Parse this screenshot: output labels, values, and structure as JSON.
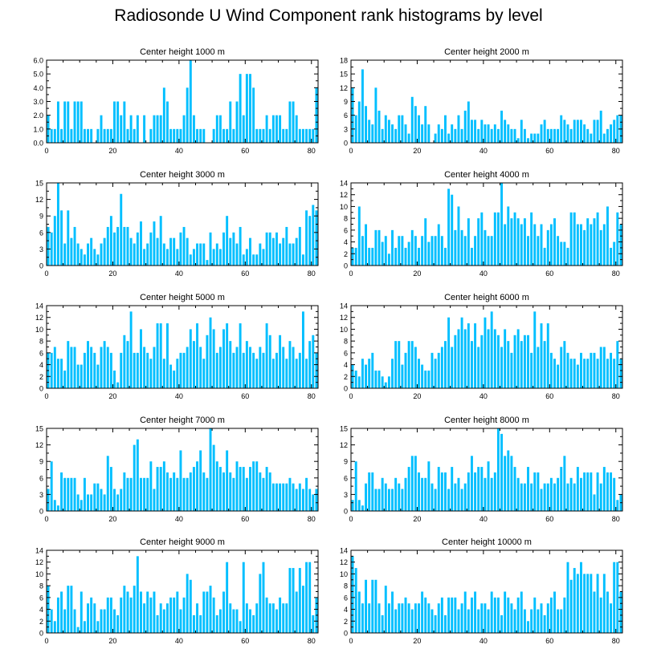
{
  "title": "Radiosonde U Wind Component rank histograms by level",
  "bar_color": "#00bfff",
  "chart_data": [
    {
      "type": "bar",
      "title": "Center height 1000 m",
      "xlim": [
        0,
        82
      ],
      "ylim": [
        0,
        6
      ],
      "yticks": [
        0,
        1,
        2,
        3,
        4,
        5,
        6
      ],
      "ytick_labels": [
        "0.0",
        "1.0",
        "2.0",
        "3.0",
        "4.0",
        "5.0",
        "6.0"
      ],
      "xticks": [
        0,
        20,
        40,
        60,
        80
      ],
      "values": [
        2,
        1,
        1,
        3,
        1,
        3,
        3,
        1,
        3,
        3,
        3,
        1,
        1,
        1,
        0,
        1,
        2,
        1,
        1,
        1,
        3,
        3,
        2,
        3,
        1,
        2,
        1,
        2,
        0,
        2,
        0,
        1,
        2,
        2,
        2,
        4,
        3,
        1,
        1,
        1,
        1,
        2,
        4,
        6,
        2,
        1,
        1,
        1,
        0,
        0,
        1,
        2,
        2,
        1,
        1,
        3,
        1,
        3,
        5,
        2,
        5,
        5,
        4,
        1,
        1,
        1,
        2,
        1,
        2,
        2,
        2,
        1,
        1,
        3,
        3,
        2,
        1,
        1,
        1,
        1,
        1,
        4
      ]
    },
    {
      "type": "bar",
      "title": "Center height 2000 m",
      "xlim": [
        0,
        82
      ],
      "ylim": [
        0,
        18
      ],
      "yticks": [
        0,
        3,
        6,
        9,
        12,
        15,
        18
      ],
      "ytick_labels": [
        "0",
        "3",
        "6",
        "9",
        "12",
        "15",
        "18"
      ],
      "xticks": [
        0,
        20,
        40,
        60,
        80
      ],
      "values": [
        12,
        6,
        9,
        16,
        8,
        5,
        4,
        12,
        7,
        3,
        6,
        5,
        4,
        3,
        6,
        6,
        4,
        2,
        10,
        8,
        6,
        4,
        8,
        4,
        0,
        2,
        4,
        3,
        6,
        2,
        4,
        3,
        6,
        3,
        7,
        9,
        5,
        5,
        3,
        5,
        4,
        4,
        3,
        4,
        3,
        7,
        5,
        4,
        3,
        3,
        1,
        5,
        3,
        1,
        2,
        2,
        2,
        4,
        5,
        3,
        3,
        3,
        3,
        6,
        5,
        4,
        3,
        5,
        5,
        5,
        4,
        3,
        2,
        5,
        5,
        7,
        2,
        3,
        4,
        5,
        6,
        6
      ]
    },
    {
      "type": "bar",
      "title": "Center height 3000 m",
      "xlim": [
        0,
        82
      ],
      "ylim": [
        0,
        15
      ],
      "yticks": [
        0,
        3,
        6,
        9,
        12,
        15
      ],
      "ytick_labels": [
        "0",
        "3",
        "6",
        "9",
        "12",
        "15"
      ],
      "xticks": [
        0,
        20,
        40,
        60,
        80
      ],
      "values": [
        7,
        6,
        9,
        15,
        10,
        4,
        10,
        5,
        7,
        4,
        3,
        2,
        4,
        5,
        3,
        2,
        4,
        5,
        7,
        9,
        6,
        7,
        13,
        7,
        7,
        5,
        4,
        6,
        8,
        3,
        4,
        6,
        8,
        5,
        9,
        4,
        3,
        5,
        5,
        3,
        6,
        7,
        5,
        2,
        3,
        4,
        4,
        4,
        1,
        6,
        3,
        4,
        3,
        6,
        9,
        5,
        6,
        4,
        7,
        2,
        3,
        5,
        2,
        2,
        4,
        3,
        6,
        6,
        5,
        6,
        4,
        5,
        7,
        4,
        4,
        5,
        7,
        2,
        10,
        9,
        11,
        10
      ]
    },
    {
      "type": "bar",
      "title": "Center height 4000 m",
      "xlim": [
        0,
        82
      ],
      "ylim": [
        0,
        14
      ],
      "yticks": [
        0,
        2,
        4,
        6,
        8,
        10,
        12,
        14
      ],
      "ytick_labels": [
        "0",
        "2",
        "4",
        "6",
        "8",
        "10",
        "12",
        "14"
      ],
      "xticks": [
        0,
        20,
        40,
        60,
        80
      ],
      "values": [
        3,
        3,
        10,
        5,
        7,
        3,
        3,
        6,
        6,
        4,
        5,
        2,
        6,
        3,
        5,
        5,
        3,
        4,
        6,
        5,
        3,
        5,
        8,
        4,
        5,
        5,
        7,
        5,
        3,
        13,
        12,
        6,
        10,
        6,
        5,
        8,
        3,
        5,
        8,
        9,
        6,
        5,
        5,
        9,
        9,
        14,
        7,
        10,
        8,
        9,
        8,
        7,
        8,
        5,
        9,
        7,
        5,
        7,
        3,
        6,
        7,
        8,
        5,
        4,
        4,
        3,
        9,
        9,
        7,
        7,
        6,
        8,
        7,
        8,
        9,
        6,
        7,
        10,
        3,
        4,
        9,
        7
      ]
    },
    {
      "type": "bar",
      "title": "Center height 5000 m",
      "xlim": [
        0,
        82
      ],
      "ylim": [
        0,
        14
      ],
      "yticks": [
        0,
        2,
        4,
        6,
        8,
        10,
        12,
        14
      ],
      "ytick_labels": [
        "0",
        "2",
        "4",
        "6",
        "8",
        "10",
        "12",
        "14"
      ],
      "xticks": [
        0,
        20,
        40,
        60,
        80
      ],
      "values": [
        6,
        6,
        7,
        5,
        5,
        3,
        8,
        7,
        7,
        4,
        4,
        6,
        8,
        7,
        6,
        4,
        7,
        8,
        7,
        6,
        3,
        1,
        6,
        9,
        8,
        13,
        6,
        6,
        10,
        7,
        6,
        5,
        7,
        11,
        11,
        5,
        11,
        4,
        3,
        5,
        6,
        6,
        7,
        10,
        8,
        11,
        7,
        5,
        9,
        12,
        10,
        6,
        7,
        10,
        11,
        8,
        6,
        7,
        11,
        6,
        8,
        7,
        6,
        5,
        7,
        6,
        11,
        9,
        5,
        6,
        9,
        7,
        5,
        8,
        7,
        5,
        6,
        13,
        5,
        8,
        9,
        6
      ]
    },
    {
      "type": "bar",
      "title": "Center height 6000 m",
      "xlim": [
        0,
        82
      ],
      "ylim": [
        0,
        14
      ],
      "yticks": [
        0,
        2,
        4,
        6,
        8,
        10,
        12,
        14
      ],
      "ytick_labels": [
        "0",
        "2",
        "4",
        "6",
        "8",
        "10",
        "12",
        "14"
      ],
      "xticks": [
        0,
        20,
        40,
        60,
        80
      ],
      "values": [
        4,
        3,
        2,
        5,
        4,
        5,
        6,
        3,
        3,
        2,
        1,
        2,
        5,
        8,
        8,
        4,
        6,
        8,
        8,
        7,
        5,
        4,
        3,
        3,
        6,
        5,
        6,
        7,
        8,
        12,
        7,
        9,
        10,
        12,
        10,
        11,
        8,
        11,
        7,
        9,
        12,
        10,
        13,
        10,
        9,
        7,
        10,
        8,
        6,
        9,
        10,
        8,
        9,
        9,
        6,
        13,
        7,
        11,
        8,
        11,
        6,
        5,
        4,
        7,
        8,
        6,
        5,
        5,
        4,
        6,
        5,
        5,
        6,
        6,
        5,
        7,
        7,
        5,
        6,
        5,
        8,
        5
      ]
    },
    {
      "type": "bar",
      "title": "Center height 7000 m",
      "xlim": [
        0,
        82
      ],
      "ylim": [
        0,
        15
      ],
      "yticks": [
        0,
        3,
        6,
        9,
        12,
        15
      ],
      "ytick_labels": [
        "0",
        "3",
        "6",
        "9",
        "12",
        "15"
      ],
      "xticks": [
        0,
        20,
        40,
        60,
        80
      ],
      "values": [
        4,
        9,
        2,
        1,
        7,
        6,
        6,
        6,
        6,
        3,
        2,
        6,
        3,
        3,
        5,
        5,
        4,
        3,
        10,
        8,
        4,
        3,
        4,
        7,
        6,
        6,
        12,
        13,
        6,
        6,
        6,
        9,
        4,
        8,
        8,
        9,
        7,
        6,
        7,
        6,
        11,
        6,
        6,
        7,
        8,
        9,
        11,
        7,
        6,
        15,
        12,
        9,
        8,
        7,
        11,
        7,
        6,
        9,
        8,
        8,
        6,
        8,
        9,
        9,
        7,
        6,
        8,
        7,
        5,
        5,
        5,
        5,
        5,
        6,
        5,
        4,
        5,
        4,
        6,
        4,
        3,
        4
      ]
    },
    {
      "type": "bar",
      "title": "Center height 8000 m",
      "xlim": [
        0,
        82
      ],
      "ylim": [
        0,
        15
      ],
      "yticks": [
        0,
        3,
        6,
        9,
        12,
        15
      ],
      "ytick_labels": [
        "0",
        "3",
        "6",
        "9",
        "12",
        "15"
      ],
      "xticks": [
        0,
        20,
        40,
        60,
        80
      ],
      "values": [
        2,
        9,
        2,
        1,
        5,
        7,
        7,
        4,
        4,
        6,
        5,
        4,
        4,
        6,
        5,
        4,
        6,
        8,
        10,
        10,
        7,
        6,
        6,
        9,
        5,
        4,
        8,
        7,
        7,
        4,
        8,
        5,
        6,
        4,
        5,
        7,
        10,
        7,
        8,
        8,
        6,
        9,
        6,
        7,
        15,
        14,
        10,
        11,
        10,
        8,
        6,
        5,
        5,
        8,
        5,
        7,
        7,
        4,
        5,
        5,
        6,
        5,
        6,
        8,
        10,
        5,
        6,
        5,
        8,
        6,
        7,
        7,
        7,
        3,
        7,
        5,
        8,
        7,
        7,
        6,
        2,
        3
      ]
    },
    {
      "type": "bar",
      "title": "Center height 9000 m",
      "xlim": [
        0,
        82
      ],
      "ylim": [
        0,
        14
      ],
      "yticks": [
        0,
        2,
        4,
        6,
        8,
        10,
        12,
        14
      ],
      "ytick_labels": [
        "0",
        "2",
        "4",
        "6",
        "8",
        "10",
        "12",
        "14"
      ],
      "xticks": [
        0,
        20,
        40,
        60,
        80
      ],
      "values": [
        8,
        4,
        2,
        6,
        7,
        4,
        8,
        8,
        4,
        1,
        7,
        2,
        5,
        6,
        5,
        2,
        4,
        4,
        6,
        6,
        4,
        3,
        6,
        8,
        7,
        6,
        8,
        13,
        7,
        5,
        7,
        6,
        7,
        3,
        5,
        4,
        5,
        6,
        6,
        7,
        4,
        6,
        10,
        9,
        3,
        5,
        3,
        7,
        7,
        8,
        6,
        3,
        4,
        7,
        12,
        5,
        4,
        4,
        2,
        12,
        5,
        4,
        3,
        5,
        10,
        12,
        6,
        5,
        5,
        4,
        6,
        5,
        5,
        11,
        11,
        7,
        11,
        8,
        12,
        12,
        3,
        6
      ]
    },
    {
      "type": "bar",
      "title": "Center height 10000 m",
      "xlim": [
        0,
        82
      ],
      "ylim": [
        0,
        14
      ],
      "yticks": [
        0,
        2,
        4,
        6,
        8,
        10,
        12,
        14
      ],
      "ytick_labels": [
        "0",
        "2",
        "4",
        "6",
        "8",
        "10",
        "12",
        "14"
      ],
      "xticks": [
        0,
        20,
        40,
        60,
        80
      ],
      "values": [
        13,
        11,
        7,
        5,
        9,
        5,
        9,
        9,
        5,
        3,
        8,
        5,
        7,
        4,
        5,
        5,
        6,
        5,
        4,
        5,
        5,
        7,
        6,
        5,
        4,
        3,
        5,
        6,
        3,
        6,
        6,
        6,
        4,
        5,
        7,
        4,
        6,
        7,
        4,
        5,
        5,
        4,
        7,
        6,
        6,
        3,
        7,
        6,
        5,
        4,
        6,
        7,
        4,
        2,
        4,
        6,
        4,
        5,
        3,
        5,
        6,
        7,
        4,
        4,
        6,
        12,
        9,
        11,
        10,
        12,
        10,
        10,
        10,
        7,
        10,
        6,
        10,
        7,
        5,
        12,
        12,
        7
      ]
    }
  ]
}
